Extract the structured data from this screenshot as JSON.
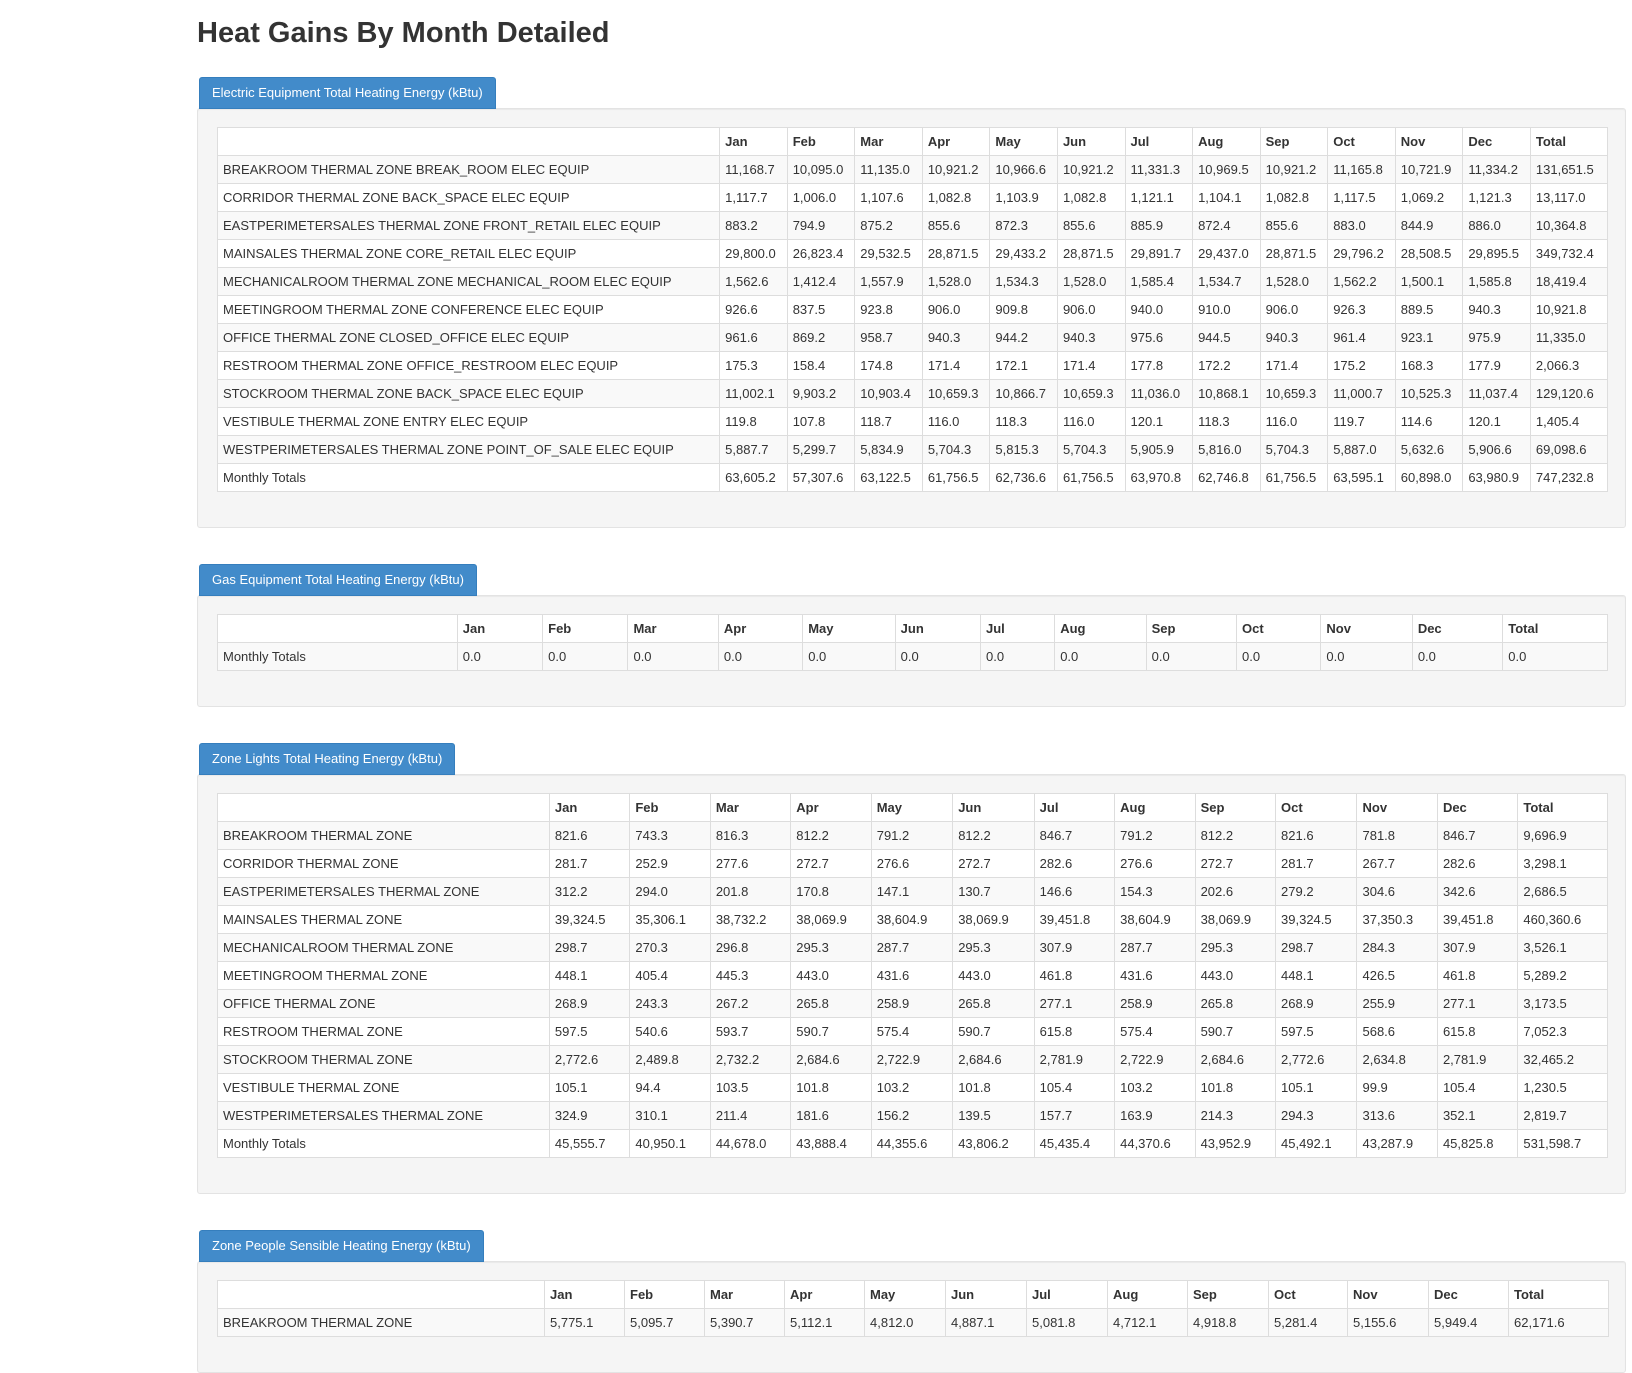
{
  "page_title": "Heat Gains By Month Detailed",
  "months": [
    "Jan",
    "Feb",
    "Mar",
    "Apr",
    "May",
    "Jun",
    "Jul",
    "Aug",
    "Sep",
    "Oct",
    "Nov",
    "Dec",
    "Total"
  ],
  "sections": [
    {
      "title": "Electric Equipment Total Heating Energy (kBtu)",
      "name_col_width": 483,
      "col_widths": [
        65,
        65,
        65,
        65,
        65,
        65,
        65,
        65,
        65,
        65,
        65,
        65,
        74
      ],
      "rows": [
        {
          "name": "BREAKROOM THERMAL ZONE BREAK_ROOM ELEC EQUIP",
          "values": [
            "11,168.7",
            "10,095.0",
            "11,135.0",
            "10,921.2",
            "10,966.6",
            "10,921.2",
            "11,331.3",
            "10,969.5",
            "10,921.2",
            "11,165.8",
            "10,721.9",
            "11,334.2",
            "131,651.5"
          ]
        },
        {
          "name": "CORRIDOR THERMAL ZONE BACK_SPACE ELEC EQUIP",
          "values": [
            "1,117.7",
            "1,006.0",
            "1,107.6",
            "1,082.8",
            "1,103.9",
            "1,082.8",
            "1,121.1",
            "1,104.1",
            "1,082.8",
            "1,117.5",
            "1,069.2",
            "1,121.3",
            "13,117.0"
          ]
        },
        {
          "name": "EASTPERIMETERSALES THERMAL ZONE FRONT_RETAIL ELEC EQUIP",
          "values": [
            "883.2",
            "794.9",
            "875.2",
            "855.6",
            "872.3",
            "855.6",
            "885.9",
            "872.4",
            "855.6",
            "883.0",
            "844.9",
            "886.0",
            "10,364.8"
          ]
        },
        {
          "name": "MAINSALES THERMAL ZONE CORE_RETAIL ELEC EQUIP",
          "values": [
            "29,800.0",
            "26,823.4",
            "29,532.5",
            "28,871.5",
            "29,433.2",
            "28,871.5",
            "29,891.7",
            "29,437.0",
            "28,871.5",
            "29,796.2",
            "28,508.5",
            "29,895.5",
            "349,732.4"
          ]
        },
        {
          "name": "MECHANICALROOM THERMAL ZONE MECHANICAL_ROOM ELEC EQUIP",
          "values": [
            "1,562.6",
            "1,412.4",
            "1,557.9",
            "1,528.0",
            "1,534.3",
            "1,528.0",
            "1,585.4",
            "1,534.7",
            "1,528.0",
            "1,562.2",
            "1,500.1",
            "1,585.8",
            "18,419.4"
          ]
        },
        {
          "name": "MEETINGROOM THERMAL ZONE CONFERENCE ELEC EQUIP",
          "values": [
            "926.6",
            "837.5",
            "923.8",
            "906.0",
            "909.8",
            "906.0",
            "940.0",
            "910.0",
            "906.0",
            "926.3",
            "889.5",
            "940.3",
            "10,921.8"
          ]
        },
        {
          "name": "OFFICE THERMAL ZONE CLOSED_OFFICE ELEC EQUIP",
          "values": [
            "961.6",
            "869.2",
            "958.7",
            "940.3",
            "944.2",
            "940.3",
            "975.6",
            "944.5",
            "940.3",
            "961.4",
            "923.1",
            "975.9",
            "11,335.0"
          ]
        },
        {
          "name": "RESTROOM THERMAL ZONE OFFICE_RESTROOM ELEC EQUIP",
          "values": [
            "175.3",
            "158.4",
            "174.8",
            "171.4",
            "172.1",
            "171.4",
            "177.8",
            "172.2",
            "171.4",
            "175.2",
            "168.3",
            "177.9",
            "2,066.3"
          ]
        },
        {
          "name": "STOCKROOM THERMAL ZONE BACK_SPACE ELEC EQUIP",
          "values": [
            "11,002.1",
            "9,903.2",
            "10,903.4",
            "10,659.3",
            "10,866.7",
            "10,659.3",
            "11,036.0",
            "10,868.1",
            "10,659.3",
            "11,000.7",
            "10,525.3",
            "11,037.4",
            "129,120.6"
          ]
        },
        {
          "name": "VESTIBULE THERMAL ZONE ENTRY ELEC EQUIP",
          "values": [
            "119.8",
            "107.8",
            "118.7",
            "116.0",
            "118.3",
            "116.0",
            "120.1",
            "118.3",
            "116.0",
            "119.7",
            "114.6",
            "120.1",
            "1,405.4"
          ]
        },
        {
          "name": "WESTPERIMETERSALES THERMAL ZONE POINT_OF_SALE ELEC EQUIP",
          "values": [
            "5,887.7",
            "5,299.7",
            "5,834.9",
            "5,704.3",
            "5,815.3",
            "5,704.3",
            "5,905.9",
            "5,816.0",
            "5,704.3",
            "5,887.0",
            "5,632.6",
            "5,906.6",
            "69,098.6"
          ]
        },
        {
          "name": "Monthly Totals",
          "values": [
            "63,605.2",
            "57,307.6",
            "63,122.5",
            "61,756.5",
            "62,736.6",
            "61,756.5",
            "63,970.8",
            "62,746.8",
            "61,756.5",
            "63,595.1",
            "60,898.0",
            "63,980.9",
            "747,232.8"
          ]
        }
      ]
    },
    {
      "title": "Gas Equipment Total Heating Energy (kBtu)",
      "name_col_width": 236,
      "col_widths": [
        84,
        84,
        89,
        83,
        91,
        84,
        73,
        90,
        89,
        83,
        90,
        89,
        103
      ],
      "rows": [
        {
          "name": "Monthly Totals",
          "values": [
            "0.0",
            "0.0",
            "0.0",
            "0.0",
            "0.0",
            "0.0",
            "0.0",
            "0.0",
            "0.0",
            "0.0",
            "0.0",
            "0.0",
            "0.0"
          ]
        }
      ]
    },
    {
      "title": "Zone Lights Total Heating Energy (kBtu)",
      "name_col_width": 330,
      "col_widths": [
        80,
        80,
        80,
        80,
        81,
        81,
        80,
        80,
        80,
        81,
        80,
        80,
        89
      ],
      "rows": [
        {
          "name": "BREAKROOM THERMAL ZONE",
          "values": [
            "821.6",
            "743.3",
            "816.3",
            "812.2",
            "791.2",
            "812.2",
            "846.7",
            "791.2",
            "812.2",
            "821.6",
            "781.8",
            "846.7",
            "9,696.9"
          ]
        },
        {
          "name": "CORRIDOR THERMAL ZONE",
          "values": [
            "281.7",
            "252.9",
            "277.6",
            "272.7",
            "276.6",
            "272.7",
            "282.6",
            "276.6",
            "272.7",
            "281.7",
            "267.7",
            "282.6",
            "3,298.1"
          ]
        },
        {
          "name": "EASTPERIMETERSALES THERMAL ZONE",
          "values": [
            "312.2",
            "294.0",
            "201.8",
            "170.8",
            "147.1",
            "130.7",
            "146.6",
            "154.3",
            "202.6",
            "279.2",
            "304.6",
            "342.6",
            "2,686.5"
          ]
        },
        {
          "name": "MAINSALES THERMAL ZONE",
          "values": [
            "39,324.5",
            "35,306.1",
            "38,732.2",
            "38,069.9",
            "38,604.9",
            "38,069.9",
            "39,451.8",
            "38,604.9",
            "38,069.9",
            "39,324.5",
            "37,350.3",
            "39,451.8",
            "460,360.6"
          ]
        },
        {
          "name": "MECHANICALROOM THERMAL ZONE",
          "values": [
            "298.7",
            "270.3",
            "296.8",
            "295.3",
            "287.7",
            "295.3",
            "307.9",
            "287.7",
            "295.3",
            "298.7",
            "284.3",
            "307.9",
            "3,526.1"
          ]
        },
        {
          "name": "MEETINGROOM THERMAL ZONE",
          "values": [
            "448.1",
            "405.4",
            "445.3",
            "443.0",
            "431.6",
            "443.0",
            "461.8",
            "431.6",
            "443.0",
            "448.1",
            "426.5",
            "461.8",
            "5,289.2"
          ]
        },
        {
          "name": "OFFICE THERMAL ZONE",
          "values": [
            "268.9",
            "243.3",
            "267.2",
            "265.8",
            "258.9",
            "265.8",
            "277.1",
            "258.9",
            "265.8",
            "268.9",
            "255.9",
            "277.1",
            "3,173.5"
          ]
        },
        {
          "name": "RESTROOM THERMAL ZONE",
          "values": [
            "597.5",
            "540.6",
            "593.7",
            "590.7",
            "575.4",
            "590.7",
            "615.8",
            "575.4",
            "590.7",
            "597.5",
            "568.6",
            "615.8",
            "7,052.3"
          ]
        },
        {
          "name": "STOCKROOM THERMAL ZONE",
          "values": [
            "2,772.6",
            "2,489.8",
            "2,732.2",
            "2,684.6",
            "2,722.9",
            "2,684.6",
            "2,781.9",
            "2,722.9",
            "2,684.6",
            "2,772.6",
            "2,634.8",
            "2,781.9",
            "32,465.2"
          ]
        },
        {
          "name": "VESTIBULE THERMAL ZONE",
          "values": [
            "105.1",
            "94.4",
            "103.5",
            "101.8",
            "103.2",
            "101.8",
            "105.4",
            "103.2",
            "101.8",
            "105.1",
            "99.9",
            "105.4",
            "1,230.5"
          ]
        },
        {
          "name": "WESTPERIMETERSALES THERMAL ZONE",
          "values": [
            "324.9",
            "310.1",
            "211.4",
            "181.6",
            "156.2",
            "139.5",
            "157.7",
            "163.9",
            "214.3",
            "294.3",
            "313.6",
            "352.1",
            "2,819.7"
          ]
        },
        {
          "name": "Monthly Totals",
          "values": [
            "45,555.7",
            "40,950.1",
            "44,678.0",
            "43,888.4",
            "44,355.6",
            "43,806.2",
            "45,435.4",
            "44,370.6",
            "43,952.9",
            "45,492.1",
            "43,287.9",
            "45,825.8",
            "531,598.7"
          ]
        }
      ]
    },
    {
      "title": "Zone People Sensible Heating Energy (kBtu)",
      "name_col_width": 327,
      "col_widths": [
        80,
        80,
        80,
        80,
        81,
        81,
        81,
        80,
        81,
        79,
        81,
        80,
        100
      ],
      "rows": [
        {
          "name": "BREAKROOM THERMAL ZONE",
          "values": [
            "5,775.1",
            "5,095.7",
            "5,390.7",
            "5,112.1",
            "4,812.0",
            "4,887.1",
            "5,081.8",
            "4,712.1",
            "4,918.8",
            "5,281.4",
            "5,155.6",
            "5,949.4",
            "62,171.6"
          ]
        }
      ]
    }
  ]
}
